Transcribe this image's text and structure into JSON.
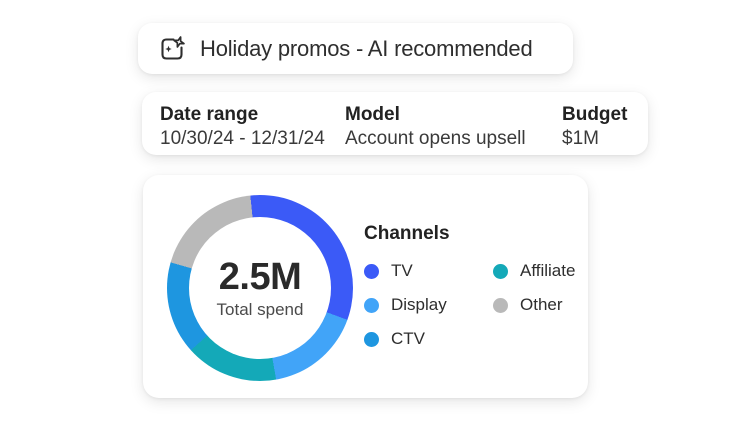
{
  "title_card": {
    "title": "Holiday promos - AI recommended",
    "icon": "ai-generate-sparkle"
  },
  "summary_card": {
    "fields": [
      {
        "label": "Date range",
        "value": "10/30/24 - 12/31/24"
      },
      {
        "label": "Model",
        "value": "Account opens upsell"
      },
      {
        "label": "Budget",
        "value": "$1M"
      }
    ]
  },
  "chart_card": {
    "center_value": "2.5M",
    "center_label": "Total spend",
    "legend": {
      "title": "Channels",
      "items": [
        {
          "label": "TV",
          "color": "#3b5af7"
        },
        {
          "label": "Display",
          "color": "#41a4f8"
        },
        {
          "label": "CTV",
          "color": "#1e96e0"
        },
        {
          "label": "Affiliate",
          "color": "#14a9b8"
        },
        {
          "label": "Other",
          "color": "#b9b9b9"
        }
      ]
    }
  },
  "chart_data": {
    "type": "pie",
    "variant": "donut",
    "title": "Channels",
    "center_value": "2.5M",
    "center_label": "Total spend",
    "legend_position": "right",
    "start_angle_deg": -6,
    "clockwise_draw_order": [
      "TV",
      "Display",
      "Affiliate",
      "CTV",
      "Other"
    ],
    "segments": [
      {
        "label": "TV",
        "color": "#3b5af7",
        "sweep_deg": 116,
        "percent": 32
      },
      {
        "label": "Display",
        "color": "#41a4f8",
        "sweep_deg": 60,
        "percent": 17
      },
      {
        "label": "Affiliate",
        "color": "#14a9b8",
        "sweep_deg": 58,
        "percent": 16
      },
      {
        "label": "CTV",
        "color": "#1e96e0",
        "sweep_deg": 58,
        "percent": 16
      },
      {
        "label": "Other",
        "color": "#b9b9b9",
        "sweep_deg": 68,
        "percent": 19
      }
    ]
  },
  "colors": {
    "card_background": "#ffffff",
    "heading_text": "#222222",
    "body_text": "#3a3a3a",
    "icon_stroke": "#2e2e2e"
  }
}
